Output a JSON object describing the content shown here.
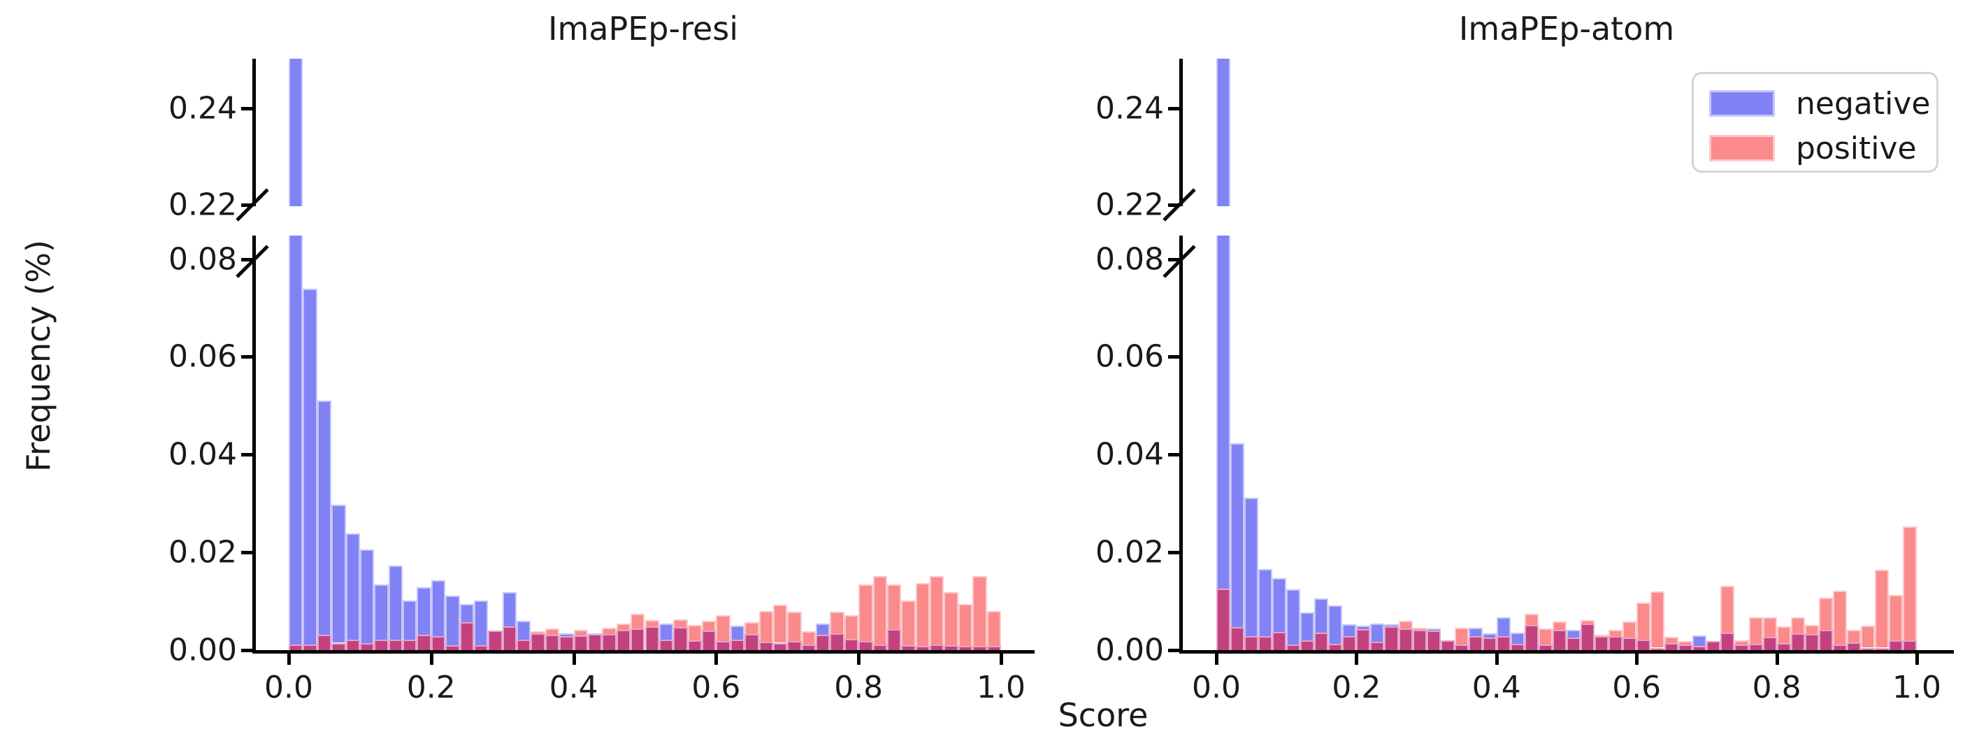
{
  "figure": {
    "xlabel": "Score",
    "ylabel": "Frequency (%)",
    "legend": {
      "items": [
        {
          "label": "negative",
          "series": "negative"
        },
        {
          "label": "positive",
          "series": "positive"
        }
      ]
    }
  },
  "colors": {
    "negative_fill": "#8182F4",
    "negative_edge": "#C6C7FB",
    "positive_fill": "#FA8A8C",
    "positive_edge": "#FFC9C9",
    "overlap_fill": "#C2417F",
    "overlap_edge": "#E5A5C5",
    "axis": "#000000",
    "text": "#1A1A1A",
    "legend_border": "#D4D4D4"
  },
  "chart_data": [
    {
      "type": "bar",
      "subtype": "overlapping-histogram-broken-y-axis",
      "title": "ImaPEp-resi",
      "xlabel": "Score",
      "ylabel": "Frequency (%)",
      "bins": {
        "start": 0.0,
        "end": 1.0,
        "width": 0.02,
        "count": 50
      },
      "x_ticks": [
        {
          "value": 0.0,
          "label": "0.0"
        },
        {
          "value": 0.2,
          "label": "0.2"
        },
        {
          "value": 0.4,
          "label": "0.4"
        },
        {
          "value": 0.6,
          "label": "0.6"
        },
        {
          "value": 0.8,
          "label": "0.8"
        },
        {
          "value": 1.0,
          "label": "1.0"
        }
      ],
      "y_axis_break": {
        "lower_range": [
          0.0,
          0.0848
        ],
        "upper_range": [
          0.2197,
          0.2502
        ],
        "lower_ticks": [
          {
            "value": 0.0,
            "label": "0.00"
          },
          {
            "value": 0.02,
            "label": "0.02"
          },
          {
            "value": 0.04,
            "label": "0.04"
          },
          {
            "value": 0.06,
            "label": "0.06"
          },
          {
            "value": 0.08,
            "label": "0.08"
          }
        ],
        "upper_ticks": [
          {
            "value": 0.22,
            "label": "0.22"
          },
          {
            "value": 0.24,
            "label": "0.24"
          }
        ]
      },
      "series": [
        {
          "name": "negative",
          "clipped_first_bin": true,
          "values": [
            0.26,
            0.074,
            0.051,
            0.0297,
            0.0239,
            0.0206,
            0.0134,
            0.0173,
            0.0102,
            0.0128,
            0.0143,
            0.0111,
            0.0095,
            0.0102,
            0.004,
            0.0118,
            0.006,
            0.0035,
            0.0032,
            0.0034,
            0.003,
            0.0035,
            0.0033,
            0.0042,
            0.0044,
            0.0048,
            0.0055,
            0.0047,
            0.002,
            0.004,
            0.0018,
            0.005,
            0.0033,
            0.0017,
            0.0015,
            0.0019,
            0.0012,
            0.0054,
            0.0035,
            0.0023,
            0.0018,
            0.0012,
            0.0043,
            0.001,
            0.0008,
            0.0011,
            0.001,
            0.0008,
            0.0008,
            0.0008
          ]
        },
        {
          "name": "positive",
          "clipped_first_bin": false,
          "values": [
            0.0012,
            0.0012,
            0.0031,
            0.0015,
            0.0021,
            0.0015,
            0.0021,
            0.0021,
            0.0021,
            0.0031,
            0.0029,
            0.001,
            0.0057,
            0.001,
            0.004,
            0.0048,
            0.0021,
            0.0038,
            0.0045,
            0.0028,
            0.0042,
            0.0033,
            0.0046,
            0.0055,
            0.0075,
            0.0061,
            0.0021,
            0.0063,
            0.0051,
            0.006,
            0.0071,
            0.0022,
            0.0057,
            0.008,
            0.0093,
            0.0079,
            0.0038,
            0.0031,
            0.0079,
            0.0071,
            0.0135,
            0.0151,
            0.0134,
            0.0102,
            0.0137,
            0.0152,
            0.0118,
            0.0094,
            0.0151,
            0.008
          ]
        }
      ]
    },
    {
      "type": "bar",
      "subtype": "overlapping-histogram-broken-y-axis",
      "title": "ImaPEp-atom",
      "xlabel": "Score",
      "ylabel": "Frequency (%)",
      "bins": {
        "start": 0.0,
        "end": 1.0,
        "width": 0.02,
        "count": 50
      },
      "x_ticks": [
        {
          "value": 0.0,
          "label": "0.0"
        },
        {
          "value": 0.2,
          "label": "0.2"
        },
        {
          "value": 0.4,
          "label": "0.4"
        },
        {
          "value": 0.6,
          "label": "0.6"
        },
        {
          "value": 0.8,
          "label": "0.8"
        },
        {
          "value": 1.0,
          "label": "1.0"
        }
      ],
      "y_axis_break": {
        "lower_range": [
          0.0,
          0.0848
        ],
        "upper_range": [
          0.2197,
          0.2502
        ],
        "lower_ticks": [
          {
            "value": 0.0,
            "label": "0.00"
          },
          {
            "value": 0.02,
            "label": "0.02"
          },
          {
            "value": 0.04,
            "label": "0.04"
          },
          {
            "value": 0.06,
            "label": "0.06"
          },
          {
            "value": 0.08,
            "label": "0.08"
          }
        ],
        "upper_ticks": [
          {
            "value": 0.22,
            "label": "0.22"
          },
          {
            "value": 0.24,
            "label": "0.24"
          }
        ]
      },
      "series": [
        {
          "name": "negative",
          "clipped_first_bin": true,
          "values": [
            0.26,
            0.0424,
            0.0312,
            0.0166,
            0.0147,
            0.0124,
            0.0077,
            0.0106,
            0.0092,
            0.0053,
            0.005,
            0.0054,
            0.0053,
            0.0045,
            0.0042,
            0.0044,
            0.002,
            0.0012,
            0.0046,
            0.0034,
            0.0067,
            0.0036,
            0.0052,
            0.0011,
            0.0042,
            0.0042,
            0.0055,
            0.0028,
            0.0028,
            0.0026,
            0.0021,
            0.0005,
            0.0014,
            0.0011,
            0.003,
            0.0019,
            0.0036,
            0.0012,
            0.0013,
            0.0027,
            0.0014,
            0.0034,
            0.0033,
            0.0042,
            0.0012,
            0.0016,
            0.0005,
            0.0005,
            0.002,
            0.002
          ]
        },
        {
          "name": "positive",
          "clipped_first_bin": false,
          "values": [
            0.0126,
            0.0047,
            0.0029,
            0.0028,
            0.0037,
            0.0012,
            0.002,
            0.0036,
            0.0013,
            0.0029,
            0.0043,
            0.0017,
            0.0049,
            0.006,
            0.0046,
            0.004,
            0.002,
            0.0046,
            0.0028,
            0.0026,
            0.0028,
            0.0013,
            0.0075,
            0.0045,
            0.0059,
            0.0026,
            0.0061,
            0.0032,
            0.0042,
            0.0058,
            0.0097,
            0.012,
            0.0027,
            0.0019,
            0.0008,
            0.0019,
            0.0132,
            0.002,
            0.0067,
            0.0067,
            0.0049,
            0.0067,
            0.0052,
            0.0107,
            0.0122,
            0.0041,
            0.005,
            0.0165,
            0.0113,
            0.0253
          ]
        }
      ]
    }
  ]
}
